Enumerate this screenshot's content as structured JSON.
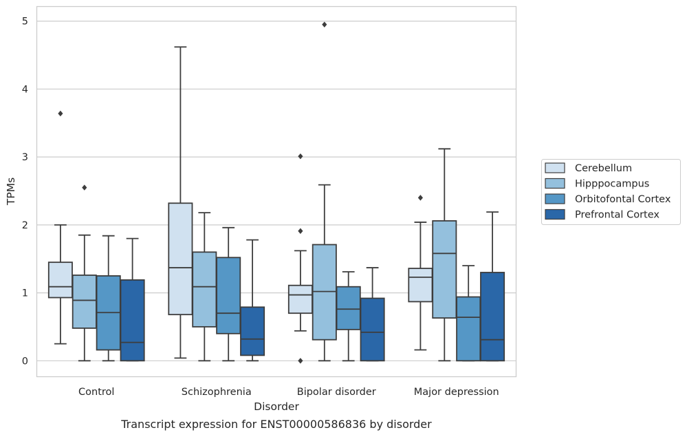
{
  "chart_data": {
    "type": "boxplot",
    "title": "",
    "caption": "Transcript expression for ENST00000586836 by disorder",
    "xlabel": "Disorder",
    "ylabel": "TPMs",
    "ylim": [
      -0.24,
      5.22
    ],
    "yticks": [
      0,
      1,
      2,
      3,
      4,
      5
    ],
    "grid": "horizontal",
    "legend_position": "right",
    "categories": [
      "Control",
      "Schizophrenia",
      "Bipolar disorder",
      "Major depression"
    ],
    "series": [
      {
        "name": "Cerebellum",
        "color": "#d0e1f0",
        "boxes": [
          {
            "whisker_low": 0.25,
            "q1": 0.93,
            "median": 1.09,
            "q3": 1.45,
            "whisker_high": 2.0,
            "outliers": [
              3.64
            ]
          },
          {
            "whisker_low": 0.04,
            "q1": 0.68,
            "median": 1.37,
            "q3": 2.32,
            "whisker_high": 4.62,
            "outliers": []
          },
          {
            "whisker_low": 0.44,
            "q1": 0.7,
            "median": 0.97,
            "q3": 1.11,
            "whisker_high": 1.62,
            "outliers": [
              3.01,
              1.91,
              0.0
            ]
          },
          {
            "whisker_low": 0.16,
            "q1": 0.87,
            "median": 1.23,
            "q3": 1.36,
            "whisker_high": 2.04,
            "outliers": [
              2.4
            ]
          }
        ]
      },
      {
        "name": "Hipppocampus",
        "color": "#94c0dd",
        "boxes": [
          {
            "whisker_low": 0.0,
            "q1": 0.48,
            "median": 0.89,
            "q3": 1.26,
            "whisker_high": 1.85,
            "outliers": [
              2.55
            ]
          },
          {
            "whisker_low": 0.0,
            "q1": 0.5,
            "median": 1.09,
            "q3": 1.6,
            "whisker_high": 2.18,
            "outliers": []
          },
          {
            "whisker_low": 0.0,
            "q1": 0.31,
            "median": 1.02,
            "q3": 1.71,
            "whisker_high": 2.59,
            "outliers": [
              4.95
            ]
          },
          {
            "whisker_low": 0.0,
            "q1": 0.63,
            "median": 1.58,
            "q3": 2.06,
            "whisker_high": 3.12,
            "outliers": []
          }
        ]
      },
      {
        "name": "Orbitofontal Cortex",
        "color": "#5597c6",
        "boxes": [
          {
            "whisker_low": 0.0,
            "q1": 0.16,
            "median": 0.71,
            "q3": 1.25,
            "whisker_high": 1.84,
            "outliers": []
          },
          {
            "whisker_low": 0.0,
            "q1": 0.4,
            "median": 0.7,
            "q3": 1.52,
            "whisker_high": 1.96,
            "outliers": []
          },
          {
            "whisker_low": 0.0,
            "q1": 0.46,
            "median": 0.76,
            "q3": 1.09,
            "whisker_high": 1.31,
            "outliers": []
          },
          {
            "whisker_low": 0.0,
            "q1": 0.0,
            "median": 0.64,
            "q3": 0.94,
            "whisker_high": 1.4,
            "outliers": []
          }
        ]
      },
      {
        "name": "Prefrontal Cortex",
        "color": "#2a67a8",
        "boxes": [
          {
            "whisker_low": 0.0,
            "q1": 0.0,
            "median": 0.27,
            "q3": 1.19,
            "whisker_high": 1.8,
            "outliers": []
          },
          {
            "whisker_low": 0.0,
            "q1": 0.08,
            "median": 0.32,
            "q3": 0.79,
            "whisker_high": 1.78,
            "outliers": []
          },
          {
            "whisker_low": 0.0,
            "q1": 0.0,
            "median": 0.42,
            "q3": 0.92,
            "whisker_high": 1.37,
            "outliers": []
          },
          {
            "whisker_low": 0.0,
            "q1": 0.0,
            "median": 0.31,
            "q3": 1.3,
            "whisker_high": 2.19,
            "outliers": []
          }
        ]
      }
    ]
  }
}
